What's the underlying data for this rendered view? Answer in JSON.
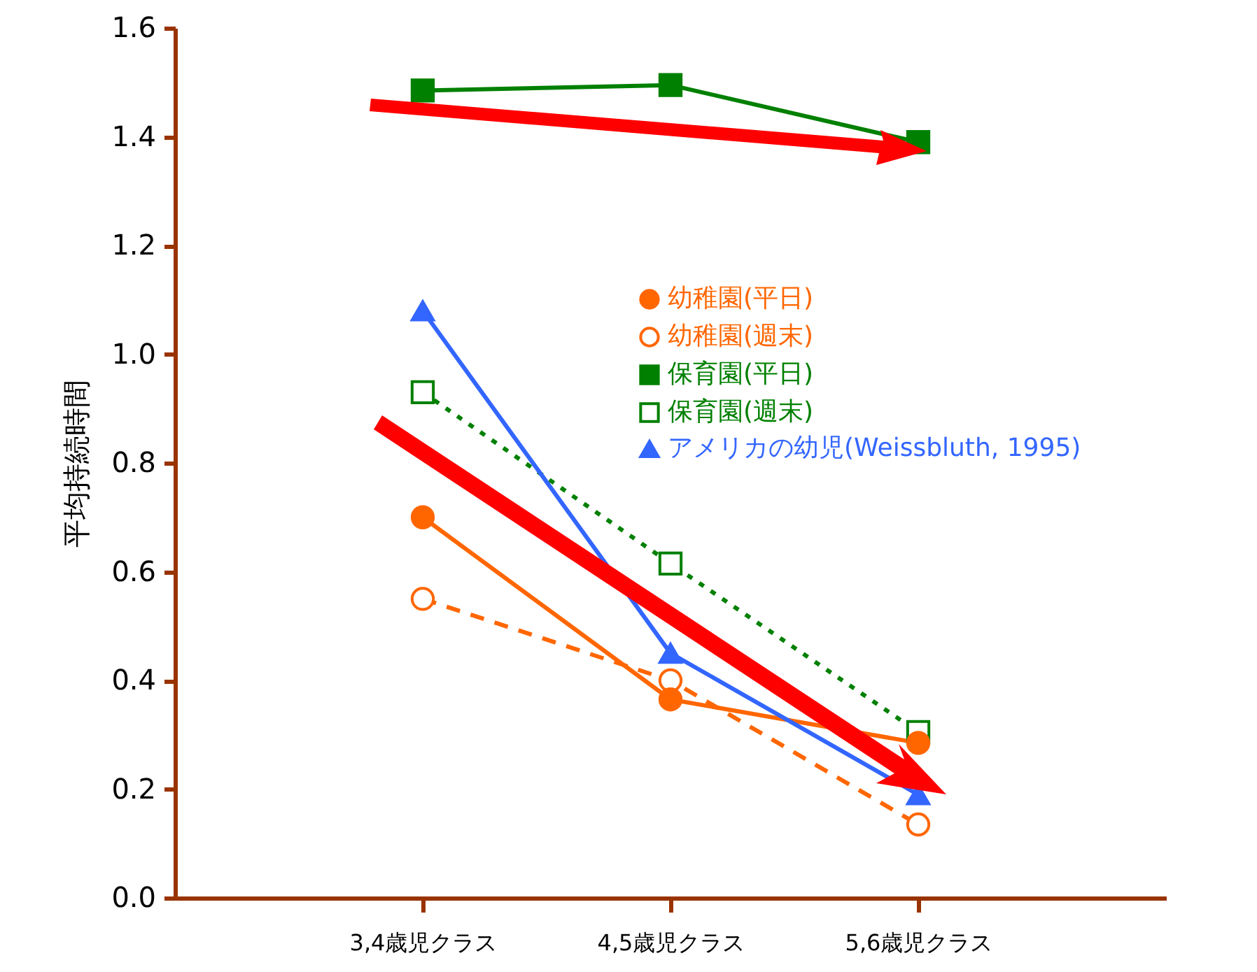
{
  "chart_data": {
    "type": "line",
    "ylabel": "平均持続時間",
    "categories": [
      "3,4歳児クラス",
      "4,5歳児クラス",
      "5,6歳児クラス"
    ],
    "ylim": [
      0,
      1.6
    ],
    "yticks": [
      {
        "value": 0,
        "label": "0.0"
      },
      {
        "value": 0.2,
        "label": "0.2"
      },
      {
        "value": 0.4,
        "label": "0.4"
      },
      {
        "value": 0.6,
        "label": "0.6"
      },
      {
        "value": 0.8,
        "label": "0.8"
      },
      {
        "value": 1,
        "label": "1.0"
      },
      {
        "value": 1.2,
        "label": "1.2"
      },
      {
        "value": 1.4,
        "label": "1.4"
      },
      {
        "value": 1.6,
        "label": "1.6"
      }
    ],
    "legend": "right",
    "grid": false,
    "series": [
      {
        "name": "幼稚園(平日)",
        "color": "#ff6600",
        "values": [
          0.7,
          0.365,
          0.285
        ],
        "marker": "circle",
        "line_style": "solid"
      },
      {
        "name": "幼稚園(週末)",
        "color": "#ff6600",
        "values": [
          0.55,
          0.4,
          0.135
        ],
        "marker": "circle",
        "line_style": "dashed"
      },
      {
        "name": "保育園(平日)",
        "color": "#008000",
        "values": [
          1.485,
          1.495,
          1.39
        ],
        "marker": "square",
        "line_style": "solid"
      },
      {
        "name": "保育園(週末)",
        "color": "#008000",
        "values": [
          0.93,
          0.615,
          0.305
        ],
        "marker": "square",
        "line_style": "dotted"
      },
      {
        "name": "アメリカの幼児(Weissbluth, 1995)",
        "color": "#3366ff",
        "values": [
          1.08,
          0.45,
          0.19
        ],
        "marker": "triangle",
        "line_style": "solid"
      }
    ]
  }
}
